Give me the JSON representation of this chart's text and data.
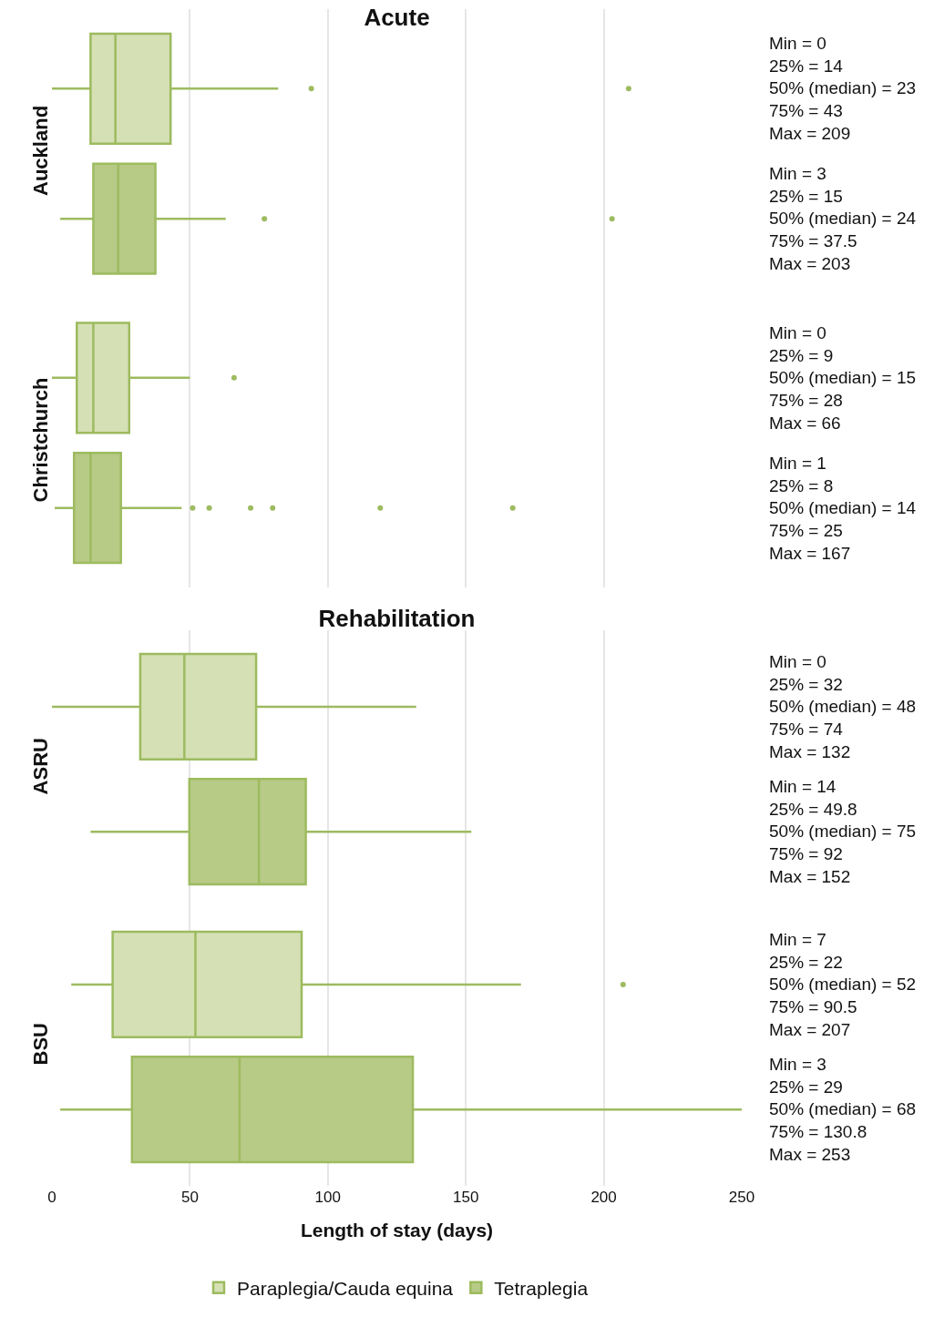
{
  "chart_data": [
    {
      "type": "box",
      "title": "Acute",
      "orientation": "horizontal",
      "categories": [
        "Auckland",
        "Christchurch"
      ],
      "xlim": [
        0,
        250
      ],
      "xticks": [
        0,
        50,
        100,
        150,
        200,
        250
      ],
      "grid": "x",
      "tick_labels": "y",
      "series": [
        {
          "color": "#d5e0b5",
          "boxes": [
            {
              "low": 0,
              "q1": 14,
              "median": 23,
              "q3": 43,
              "high": 82,
              "outliers": [
                94,
                209
              ]
            },
            {
              "low": 0,
              "q1": 9,
              "median": 15,
              "q3": 28,
              "high": 50,
              "outliers": [
                66
              ]
            }
          ]
        },
        {
          "color": "#b7ca86",
          "boxes": [
            {
              "low": 3,
              "q1": 15,
              "median": 24,
              "q3": 37.5,
              "high": 63,
              "outliers": [
                77,
                203
              ]
            },
            {
              "low": 1,
              "q1": 8,
              "median": 14,
              "q3": 25,
              "high": 47,
              "outliers": [
                51,
                57,
                72,
                80,
                119,
                167
              ]
            }
          ]
        }
      ],
      "annotations": [
        "Min = 0\n25% = 14\n50% (median) = 23\n75% = 43\nMax = 209",
        "Min = 3\n25% = 15\n50% (median) = 24\n75% = 37.5\nMax = 203",
        "Min = 0\n25% = 9\n50% (median) = 15\n75% = 28\nMax = 66",
        "Min = 1\n25% = 8\n50% (median) = 14\n75% = 25\nMax = 167"
      ]
    },
    {
      "type": "box",
      "title": "Rehabilitation",
      "orientation": "horizontal",
      "categories": [
        "ASRU",
        "BSU"
      ],
      "xlabel": "Length of stay (days)",
      "xlim": [
        0,
        250
      ],
      "xticks": [
        0,
        50,
        100,
        150,
        200,
        250
      ],
      "grid": "x",
      "legend": "bottom",
      "series": [
        {
          "name": "Paraplegia/Cauda equina",
          "color": "#d5e0b5",
          "boxes": [
            {
              "low": 0,
              "q1": 32,
              "median": 48,
              "q3": 74,
              "high": 132
            },
            {
              "low": 7,
              "q1": 22,
              "median": 52,
              "q3": 90.5,
              "high": 170,
              "outliers": [
                207
              ]
            }
          ]
        },
        {
          "name": "Tetraplegia",
          "color": "#b7ca86",
          "boxes": [
            {
              "low": 14,
              "q1": 49.8,
              "median": 75,
              "q3": 92,
              "high": 152
            },
            {
              "low": 3,
              "q1": 29,
              "median": 68,
              "q3": 130.8,
              "high": 253
            }
          ]
        }
      ],
      "annotations": [
        "Min = 0\n25% = 32\n50% (median) = 48\n75% = 74\nMax = 132",
        "Min = 14\n25% = 49.8\n50% (median) = 75\n75% = 92\nMax = 152",
        "Min = 7\n25% = 22\n50% (median) = 52\n75% = 90.5\nMax = 207",
        "Min = 3\n25% = 29\n50% (median) = 68\n75% = 130.8\nMax = 253"
      ]
    }
  ]
}
